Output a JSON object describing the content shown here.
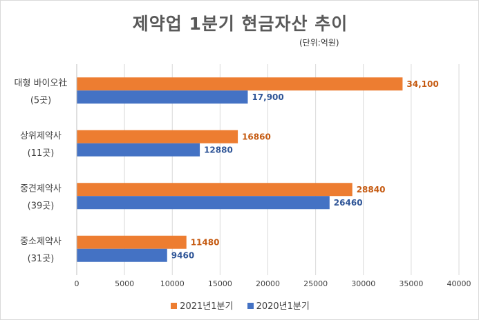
{
  "chart_data": {
    "type": "bar",
    "orientation": "horizontal",
    "title": "제약업 1분기 현금자산 추이",
    "unit_note": "(단위:억원)",
    "categories": [
      {
        "name": "대형 바이오社",
        "count": "(5곳)"
      },
      {
        "name": "상위제약사",
        "count": "(11곳)"
      },
      {
        "name": "중견제약사",
        "count": "(39곳)"
      },
      {
        "name": "중소제약사",
        "count": "(31곳)"
      }
    ],
    "series": [
      {
        "name": "2021년1분기",
        "color": "#ed7d31",
        "label_color": "#c55a11",
        "values": [
          34100,
          16860,
          28840,
          11480
        ],
        "data_labels": [
          "34,100",
          "16860",
          "28840",
          "11480"
        ]
      },
      {
        "name": "2020년1분기",
        "color": "#4472c4",
        "label_color": "#2f5597",
        "values": [
          17900,
          12880,
          26460,
          9460
        ],
        "data_labels": [
          "17,900",
          "12880",
          "26460",
          "9460"
        ]
      }
    ],
    "xlim": [
      0,
      40000
    ],
    "xticks": [
      "0",
      "5000",
      "10000",
      "15000",
      "20000",
      "25000",
      "30000",
      "35000",
      "40000"
    ],
    "grid": "vertical",
    "legend_position": "bottom"
  }
}
